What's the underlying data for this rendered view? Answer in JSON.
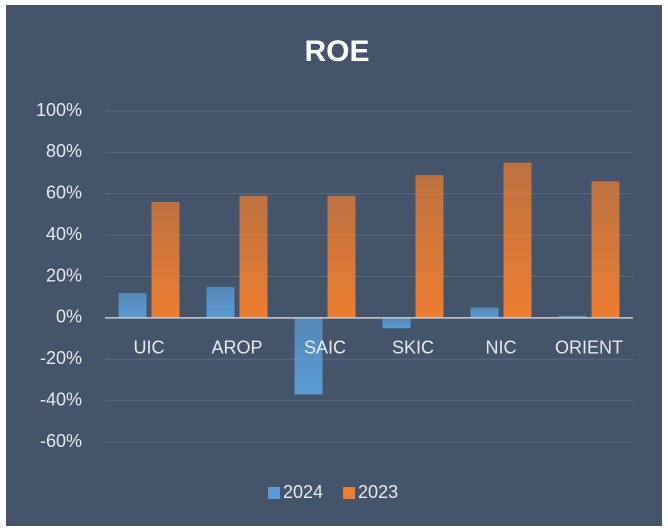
{
  "chart_data": {
    "type": "bar",
    "title": "ROE",
    "categories": [
      "UIC",
      "AROP",
      "SAIC",
      "SKIC",
      "NIC",
      "ORIENT"
    ],
    "series": [
      {
        "name": "2024",
        "color": "#5b9bd5",
        "values": [
          12,
          15,
          -37,
          -5,
          5,
          1
        ]
      },
      {
        "name": "2023",
        "color": "#ed7d31",
        "values": [
          56,
          59,
          59,
          69,
          75,
          66
        ]
      }
    ],
    "ylim": [
      -60,
      100
    ],
    "yticks": [
      {
        "value": -60,
        "label": "-60%"
      },
      {
        "value": -40,
        "label": "-40%"
      },
      {
        "value": -20,
        "label": "-20%"
      },
      {
        "value": 0,
        "label": "0%"
      },
      {
        "value": 20,
        "label": "20%"
      },
      {
        "value": 40,
        "label": "40%"
      },
      {
        "value": 60,
        "label": "60%"
      },
      {
        "value": 80,
        "label": "80%"
      },
      {
        "value": 100,
        "label": "100%"
      }
    ],
    "grid": true,
    "legend": "bottom"
  }
}
